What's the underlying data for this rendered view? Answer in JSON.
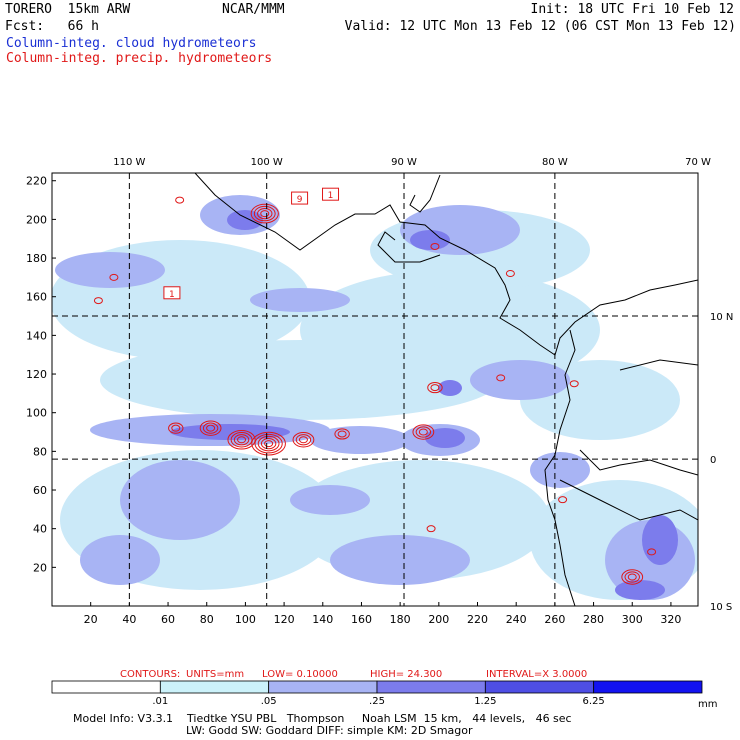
{
  "header": {
    "model": "TORERO  15km ARW",
    "center": "NCAR/MMM",
    "init": "Init: 18 UTC Fri 10 Feb 12",
    "fcst": "Fcst:   66 h",
    "valid": "Valid: 12 UTC Mon 13 Feb 12 (06 CST Mon 13 Feb 12)",
    "title_cloud": "Column-integ. cloud hydrometeors",
    "title_precip": "Column-integ. precip. hydrometeors"
  },
  "chart_data": {
    "type": "contour-map",
    "fields": [
      {
        "name": "Column-integ. cloud hydrometeors",
        "style": "shaded",
        "color": "#6666ee"
      },
      {
        "name": "Column-integ. precip. hydrometeors",
        "style": "contour",
        "color": "#e01818"
      }
    ],
    "x_axis": {
      "min": 0,
      "max": 334,
      "ticks": [
        20,
        40,
        60,
        80,
        100,
        120,
        140,
        160,
        180,
        200,
        220,
        240,
        260,
        280,
        300,
        320
      ]
    },
    "y_axis": {
      "min": 0,
      "max": 224,
      "ticks": [
        20,
        40,
        60,
        80,
        100,
        120,
        140,
        160,
        180,
        200,
        220
      ]
    },
    "lon_labels": [
      {
        "text": "110 W",
        "x": 40
      },
      {
        "text": "100 W",
        "x": 111
      },
      {
        "text": "90 W",
        "x": 182
      },
      {
        "text": "80 W",
        "x": 260
      },
      {
        "text": "70 W",
        "x": 334
      }
    ],
    "lat_labels": [
      {
        "text": "10 N",
        "y": 150
      },
      {
        "text": "0",
        "y": 76
      },
      {
        "text": "10 S",
        "y": 0
      }
    ],
    "meridians_x": [
      40,
      111,
      182,
      260
    ],
    "parallels_y": [
      150,
      76
    ],
    "contour_info": {
      "label": "CONTOURS:",
      "units": "UNITS=mm",
      "low": "LOW= 0.10000",
      "high": "HIGH=  24.300",
      "interval": "INTERVAL=X  3.0000"
    },
    "contour_labels": [
      {
        "text": "1",
        "x": 62,
        "y": 161
      },
      {
        "text": "9",
        "x": 128,
        "y": 210
      },
      {
        "text": "1",
        "x": 144,
        "y": 212
      }
    ],
    "colorbar": {
      "levels": [
        ".01",
        ".05",
        ".25",
        "1.25",
        "6.25"
      ],
      "colors": [
        "#ffffff",
        "#ccf2fa",
        "#a8b4f4",
        "#7c7cec",
        "#4e4ee4",
        "#1212f0"
      ],
      "units": "mm"
    },
    "clusters": [
      {
        "lon": 24,
        "lat": 158,
        "value": 3.0
      },
      {
        "lon": 32,
        "lat": 170,
        "value": 1.5
      },
      {
        "lon": 66,
        "lat": 210,
        "value": 2.0
      },
      {
        "lon": 82,
        "lat": 92,
        "value": 9.0
      },
      {
        "lon": 64,
        "lat": 92,
        "value": 6.0
      },
      {
        "lon": 98,
        "lat": 86,
        "value": 12.0
      },
      {
        "lon": 112,
        "lat": 84,
        "value": 15.0
      },
      {
        "lon": 130,
        "lat": 86,
        "value": 9.0
      },
      {
        "lon": 150,
        "lat": 89,
        "value": 6.0
      },
      {
        "lon": 110,
        "lat": 203,
        "value": 12.0
      },
      {
        "lon": 192,
        "lat": 90,
        "value": 9.0
      },
      {
        "lon": 198,
        "lat": 113,
        "value": 6.0
      },
      {
        "lon": 232,
        "lat": 118,
        "value": 3.0
      },
      {
        "lon": 270,
        "lat": 115,
        "value": 3.0
      },
      {
        "lon": 198,
        "lat": 186,
        "value": 3.0
      },
      {
        "lon": 237,
        "lat": 172,
        "value": 3.0
      },
      {
        "lon": 300,
        "lat": 15,
        "value": 9.0
      },
      {
        "lon": 310,
        "lat": 28,
        "value": 3.0
      },
      {
        "lon": 264,
        "lat": 55,
        "value": 3.0
      },
      {
        "lon": 196,
        "lat": 40,
        "value": 3.0
      }
    ]
  },
  "footer": {
    "line1": "Model Info: V3.3.1    Tiedtke YSU PBL   Thompson     Noah LSM  15 km,   44 levels,   46 sec",
    "line2": "LW: Godd SW: Goddard DIFF: simple KM: 2D Smagor"
  }
}
